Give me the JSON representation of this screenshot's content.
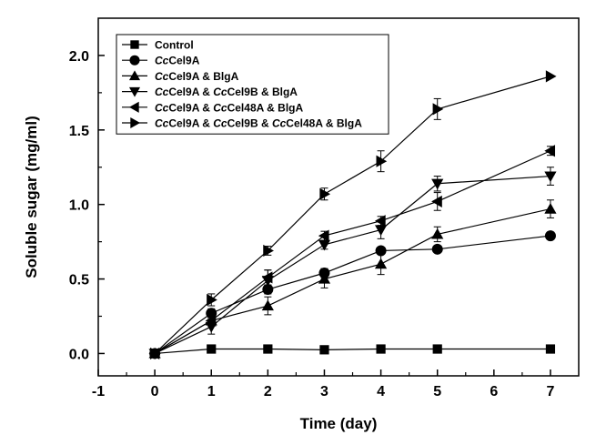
{
  "chart_data": {
    "type": "line",
    "xlabel": "Time (day)",
    "ylabel": "Soluble sugar (mg/ml)",
    "xlim": [
      -1,
      7.5
    ],
    "ylim": [
      -0.15,
      2.25
    ],
    "xticks": [
      -1,
      0,
      1,
      2,
      3,
      4,
      5,
      6,
      7
    ],
    "yticks": [
      0.0,
      0.5,
      1.0,
      1.5,
      2.0
    ],
    "xtick_labels": [
      "-1",
      "0",
      "1",
      "2",
      "3",
      "4",
      "5",
      "6",
      "7"
    ],
    "ytick_labels": [
      "0.0",
      "0.5",
      "1.0",
      "1.5",
      "2.0"
    ],
    "grid": false,
    "legend_position": "top-left",
    "x": [
      0,
      1,
      2,
      3,
      4,
      5,
      7
    ],
    "series": [
      {
        "name": "Control",
        "marker": "square",
        "legend_parts": [
          {
            "t": "Control",
            "i": false
          }
        ],
        "values": [
          0.0,
          0.03,
          0.03,
          0.025,
          0.03,
          0.03,
          0.03
        ],
        "errors": [
          0,
          0,
          0,
          0,
          0,
          0,
          0
        ]
      },
      {
        "name": "CcCel9A",
        "marker": "circle",
        "legend_parts": [
          {
            "t": "Cc",
            "i": true
          },
          {
            "t": "Cel9A",
            "i": false
          }
        ],
        "values": [
          0.0,
          0.27,
          0.43,
          0.54,
          0.69,
          0.7,
          0.79
        ],
        "errors": [
          0,
          0.03,
          0.03,
          0.03,
          0,
          0,
          0
        ]
      },
      {
        "name": "CcCel9A & BlgA",
        "marker": "triangle-up",
        "legend_parts": [
          {
            "t": "Cc",
            "i": true
          },
          {
            "t": "Cel9A & BlgA",
            "i": false
          }
        ],
        "values": [
          0.0,
          0.22,
          0.32,
          0.5,
          0.6,
          0.8,
          0.97
        ],
        "errors": [
          0,
          0.03,
          0.06,
          0.06,
          0.07,
          0.05,
          0.06
        ]
      },
      {
        "name": "CcCel9A & CcCel9B & BlgA",
        "marker": "triangle-down",
        "legend_parts": [
          {
            "t": "Cc",
            "i": true
          },
          {
            "t": "Cel9A & ",
            "i": false
          },
          {
            "t": "Cc",
            "i": true
          },
          {
            "t": "Cel9B & BlgA",
            "i": false
          }
        ],
        "values": [
          0.0,
          0.18,
          0.49,
          0.73,
          0.83,
          1.14,
          1.19
        ],
        "errors": [
          0,
          0.05,
          0.07,
          0.03,
          0.06,
          0.05,
          0.06
        ]
      },
      {
        "name": "CcCel9A & CcCel48A & BlgA",
        "marker": "triangle-left",
        "legend_parts": [
          {
            "t": "Cc",
            "i": true
          },
          {
            "t": "Cel9A & ",
            "i": false
          },
          {
            "t": "Cc",
            "i": true
          },
          {
            "t": "Cel48A & BlgA",
            "i": false
          }
        ],
        "values": [
          0.0,
          0.22,
          0.51,
          0.79,
          0.89,
          1.02,
          1.36
        ],
        "errors": [
          0,
          0.03,
          0.05,
          0.03,
          0.03,
          0.06,
          0.03
        ]
      },
      {
        "name": "CcCel9A & CcCel9B & CcCel48A & BlgA",
        "marker": "triangle-right",
        "legend_parts": [
          {
            "t": "Cc",
            "i": true
          },
          {
            "t": "Cel9A & ",
            "i": false
          },
          {
            "t": "Cc",
            "i": true
          },
          {
            "t": "Cel9B & ",
            "i": false
          },
          {
            "t": "Cc",
            "i": true
          },
          {
            "t": "Cel48A & BlgA",
            "i": false
          }
        ],
        "values": [
          0.0,
          0.36,
          0.69,
          1.07,
          1.29,
          1.64,
          1.86
        ],
        "errors": [
          0,
          0.04,
          0.03,
          0.04,
          0.07,
          0.07,
          0
        ]
      }
    ]
  },
  "colors": {
    "series": "#000000",
    "axis": "#000000",
    "background": "#ffffff"
  }
}
